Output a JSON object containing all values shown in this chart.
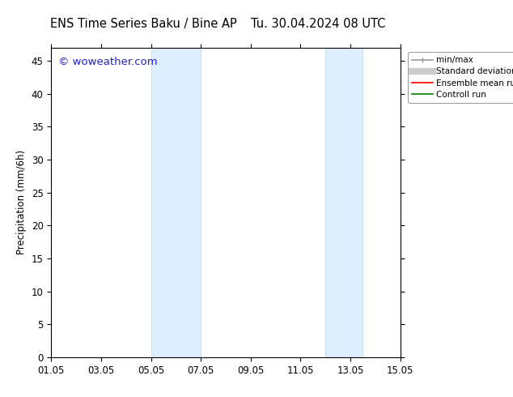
{
  "title_left": "ENS Time Series Baku / Bine AP",
  "title_right": "Tu. 30.04.2024 08 UTC",
  "ylabel": "Precipitation (mm/6h)",
  "ylim": [
    0,
    47
  ],
  "yticks": [
    0,
    5,
    10,
    15,
    20,
    25,
    30,
    35,
    40,
    45
  ],
  "xtick_labels": [
    "01.05",
    "03.05",
    "05.05",
    "07.05",
    "09.05",
    "11.05",
    "13.05",
    "15.05"
  ],
  "xtick_positions": [
    0,
    2,
    4,
    6,
    8,
    10,
    12,
    14
  ],
  "shaded_regions": [
    {
      "x_start": 4.0,
      "x_end": 6.0
    },
    {
      "x_start": 11.0,
      "x_end": 12.5
    }
  ],
  "shaded_color": "#ddeeff",
  "shaded_edge_color": "#b8d4ee",
  "background_color": "#ffffff",
  "plot_bg_color": "#ffffff",
  "watermark_text": "© woweather.com",
  "watermark_color": "#2222cc",
  "legend_entries": [
    {
      "label": "min/max",
      "color": "#999999",
      "lw": 1.2
    },
    {
      "label": "Standard deviation",
      "color": "#cccccc",
      "lw": 7
    },
    {
      "label": "Ensemble mean run",
      "color": "#ff0000",
      "lw": 1.2
    },
    {
      "label": "Controll run",
      "color": "#008000",
      "lw": 1.2
    }
  ],
  "tick_label_fontsize": 8.5,
  "ylabel_fontsize": 8.5,
  "title_fontsize": 10.5,
  "watermark_fontsize": 9.5,
  "legend_fontsize": 7.5
}
